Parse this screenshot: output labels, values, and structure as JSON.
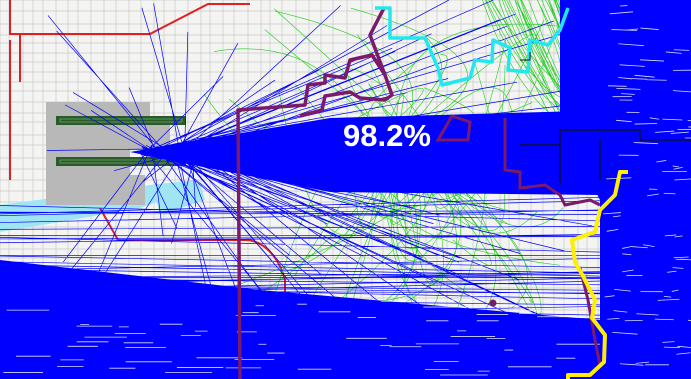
{
  "map": {
    "overlay_percent": "98.2%",
    "colors": {
      "background": "#f4f4f2",
      "street_grid": "#c9c9c9",
      "major_road": "#e02020",
      "water": "#9fe6f2",
      "airport_apron": "#b8b8b8",
      "runway": "#2a5a2a",
      "flight_tracks_blue": "#0000ff",
      "flight_tracks_green": "#22cc22",
      "boundary_purple": "#7a1a6a",
      "boundary_cyan": "#22e8ee",
      "boundary_yellow": "#ffee00",
      "boundary_black": "#111111"
    },
    "layers": [
      "street-grid",
      "major-roads",
      "water",
      "airport-runways",
      "green-flight-tracks",
      "blue-flight-tracks",
      "purple-boundary",
      "cyan-boundary",
      "yellow-boundary",
      "black-boundary"
    ]
  }
}
